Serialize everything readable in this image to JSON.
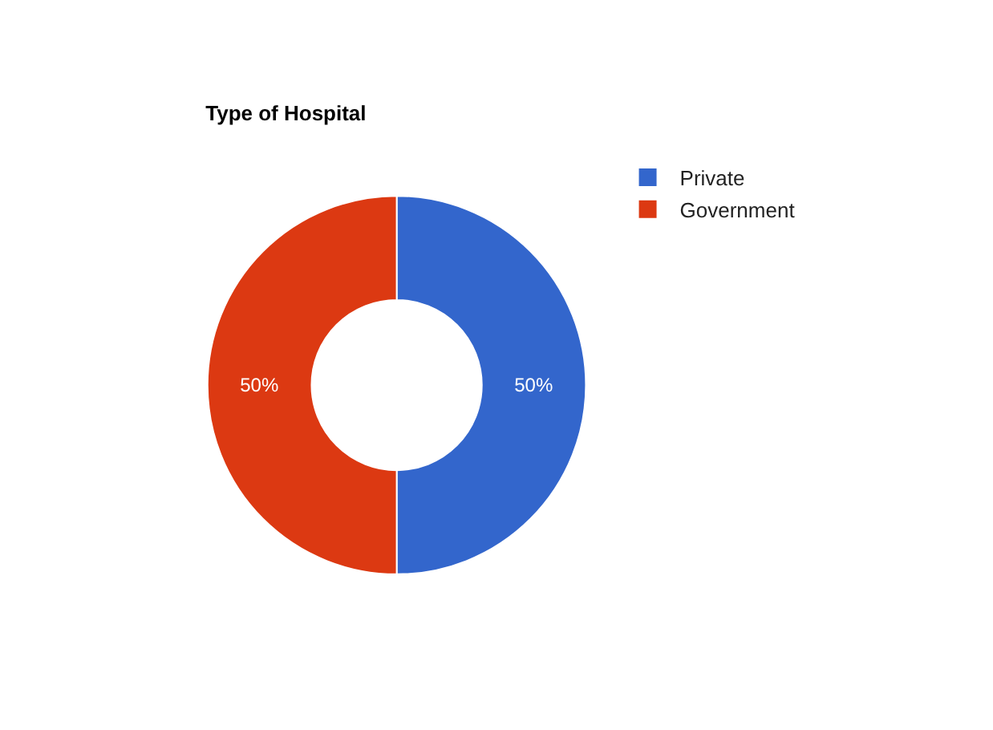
{
  "chart_data": {
    "type": "donut",
    "title": "Type of Hospital",
    "categories": [
      "Private",
      "Government"
    ],
    "values": [
      50,
      50
    ],
    "colors": [
      "#3366cc",
      "#dc3912"
    ],
    "value_labels": [
      "50%",
      "50%"
    ],
    "legend": "top right"
  }
}
